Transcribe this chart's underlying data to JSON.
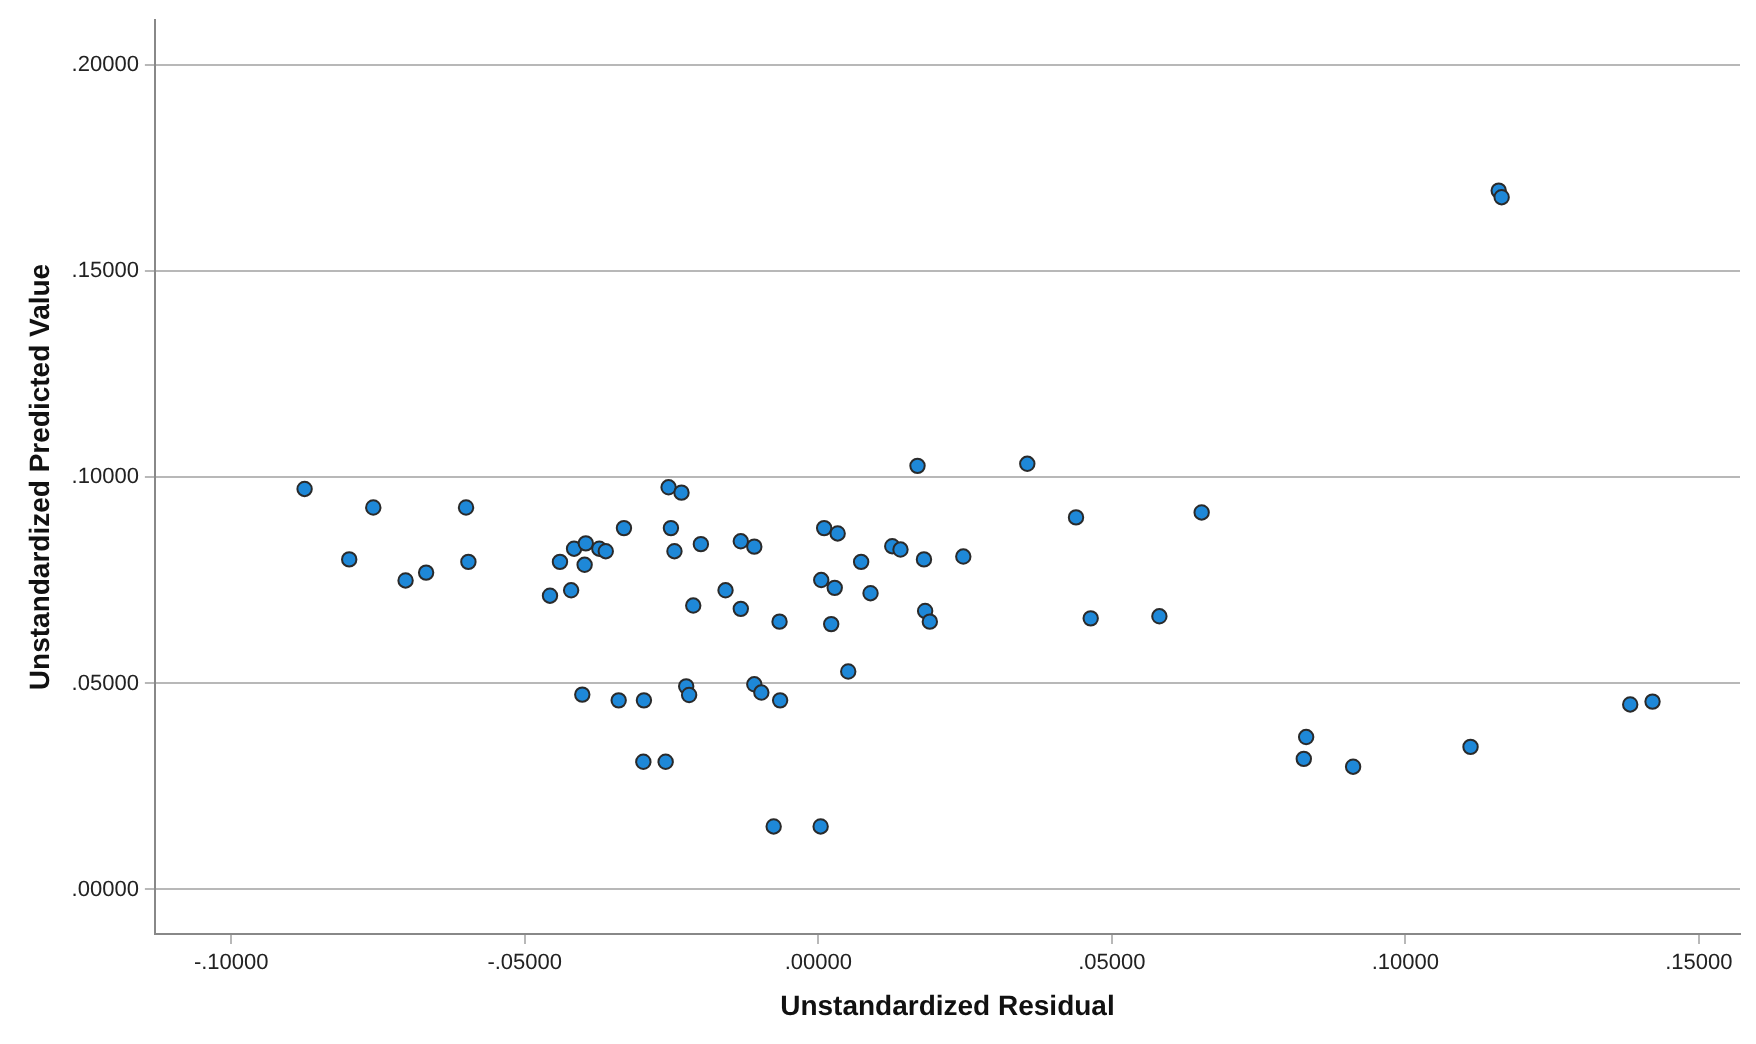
{
  "chart_data": {
    "type": "scatter",
    "xlabel": "Unstandardized Residual",
    "ylabel": "Unstandardized Predicted Value",
    "marker": "circle",
    "grid": "y",
    "legend": false,
    "xlim": [
      -0.113,
      0.157
    ],
    "ylim": [
      -0.0108,
      0.211
    ],
    "xticks": [
      {
        "value": -0.1,
        "label": "-.10000"
      },
      {
        "value": -0.05,
        "label": "-.05000"
      },
      {
        "value": 0,
        "label": ".00000"
      },
      {
        "value": 0.05,
        "label": ".05000"
      },
      {
        "value": 0.1,
        "label": ".10000"
      },
      {
        "value": 0.15,
        "label": ".15000"
      }
    ],
    "yticks": [
      {
        "value": 0,
        "label": ".00000"
      },
      {
        "value": 0.05,
        "label": ".05000"
      },
      {
        "value": 0.1,
        "label": ".10000"
      },
      {
        "value": 0.15,
        "label": ".15000"
      },
      {
        "value": 0.2,
        "label": ".20000"
      }
    ],
    "series": [
      {
        "color": "#1e88d8",
        "x": [
          -0.0875,
          -0.0758,
          -0.06,
          -0.0799,
          -0.0703,
          -0.0668,
          -0.0596,
          -0.0457,
          -0.0421,
          -0.044,
          -0.0416,
          -0.0396,
          -0.0398,
          -0.0373,
          -0.0362,
          -0.0331,
          -0.0255,
          -0.0233,
          -0.0251,
          -0.0245,
          -0.02,
          -0.0213,
          -0.0158,
          -0.0132,
          -0.0132,
          -0.0402,
          -0.034,
          -0.0297,
          -0.0225,
          -0.022,
          -0.0298,
          -0.026,
          -0.0109,
          -0.0066,
          -0.0109,
          -0.0097,
          -0.0065,
          0.0169,
          0.0356,
          0.001,
          0.0033,
          0.0126,
          0.014,
          0.0073,
          0.018,
          0.0247,
          0.0005,
          0.0028,
          0.0089,
          0.0182,
          0.019,
          0.0022,
          0.0051,
          0.0439,
          0.0653,
          0.0464,
          0.0581,
          -0.0076,
          0.0004,
          0.1159,
          0.1164,
          0.0831,
          0.0827,
          0.0911,
          0.1111,
          0.1383,
          0.1421
        ],
        "values": [
          0.0972,
          0.0927,
          0.0927,
          0.0801,
          0.075,
          0.0769,
          0.0795,
          0.0713,
          0.0726,
          0.0795,
          0.0827,
          0.084,
          0.0788,
          0.0827,
          0.0821,
          0.0877,
          0.0976,
          0.0963,
          0.0877,
          0.0821,
          0.0838,
          0.0689,
          0.0726,
          0.0845,
          0.0681,
          0.0473,
          0.0459,
          0.0459,
          0.0493,
          0.0472,
          0.031,
          0.031,
          0.0832,
          0.065,
          0.0498,
          0.0478,
          0.0459,
          0.1028,
          0.1033,
          0.0877,
          0.0864,
          0.0833,
          0.0825,
          0.0795,
          0.0801,
          0.0808,
          0.0751,
          0.0732,
          0.0719,
          0.0676,
          0.065,
          0.0644,
          0.0529,
          0.0903,
          0.0915,
          0.0658,
          0.0663,
          0.0153,
          0.0153,
          0.1696,
          0.168,
          0.037,
          0.0317,
          0.0298,
          0.0346,
          0.0449,
          0.0456
        ]
      }
    ]
  }
}
